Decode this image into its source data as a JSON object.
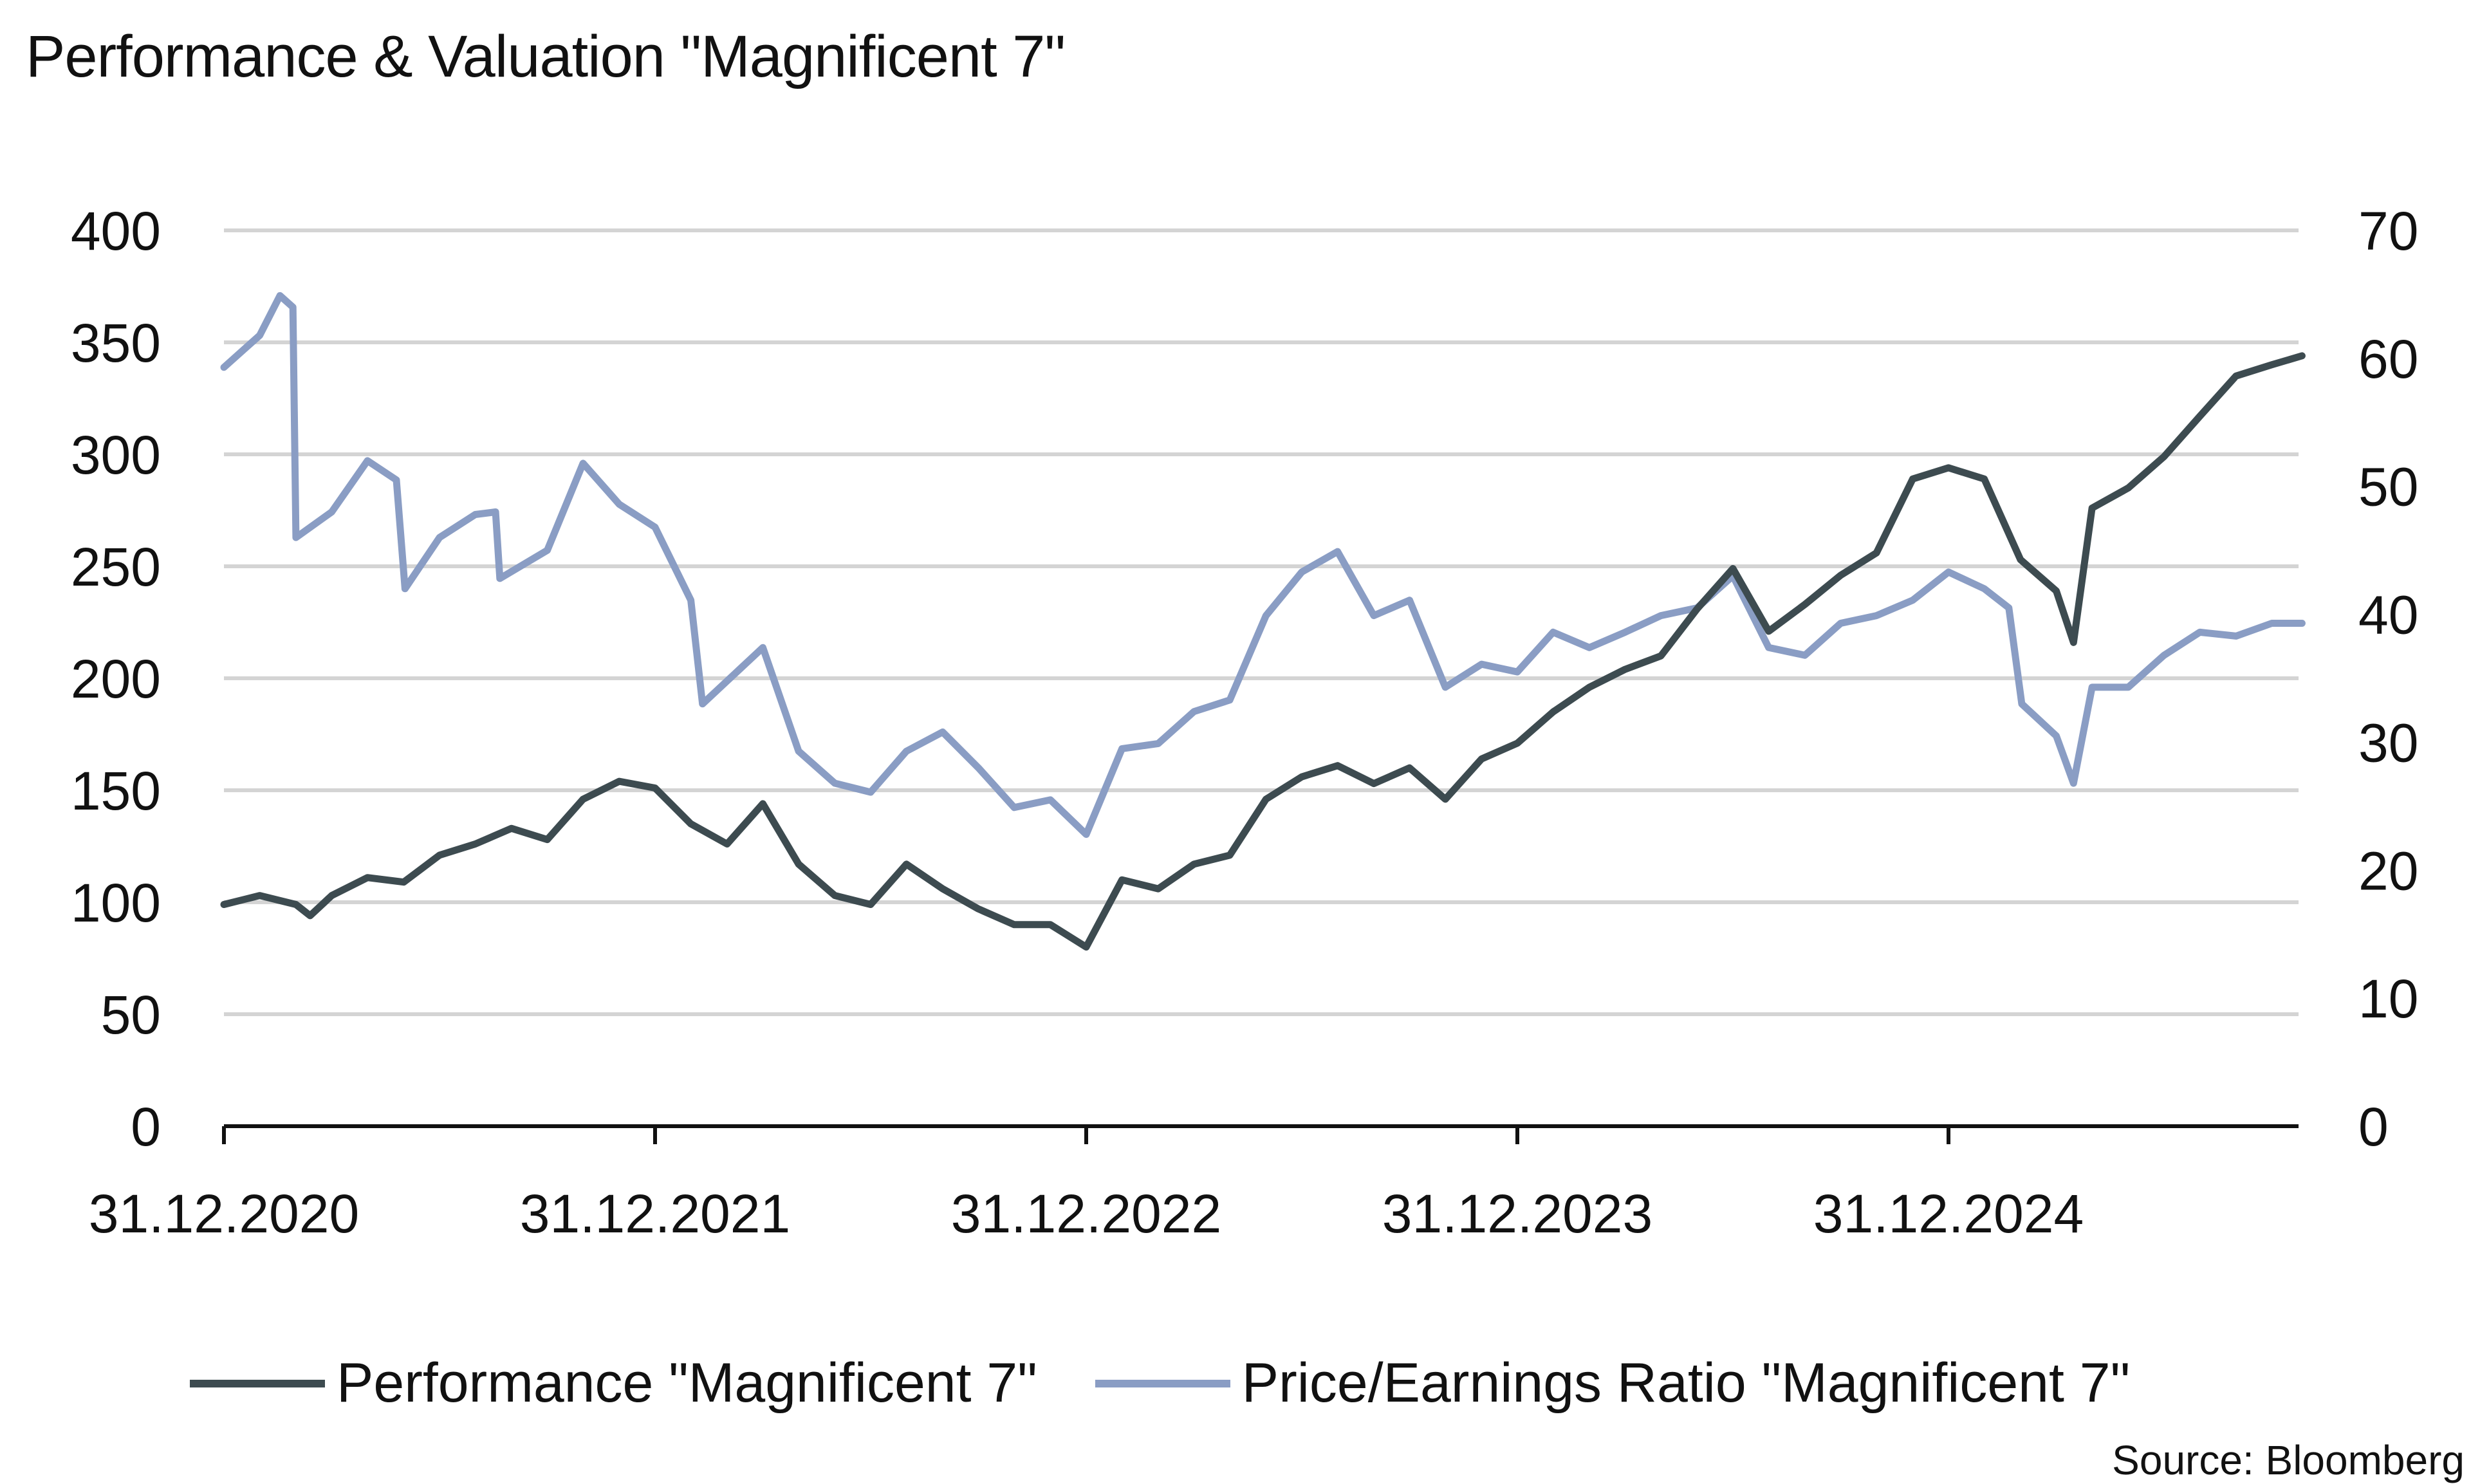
{
  "chart_data": {
    "type": "line",
    "title": "Performance & Valuation \"Magnificent 7\"",
    "xlabel": "",
    "ylabel_left": "",
    "ylabel_right": "",
    "x_unit": "years since 31.12.2020 (monthly samples)",
    "x_ticks": [
      0,
      1,
      2,
      3,
      4
    ],
    "x_tick_labels": [
      "31.12.2020",
      "31.12.2021",
      "31.12.2022",
      "31.12.2023",
      "31.12.2024"
    ],
    "xlim": [
      0,
      4.82
    ],
    "ylim_left": [
      0,
      400
    ],
    "y_ticks_left": [
      0,
      50,
      100,
      150,
      200,
      250,
      300,
      350,
      400
    ],
    "ylim_right": [
      0,
      70
    ],
    "y_ticks_right": [
      0,
      10,
      20,
      30,
      40,
      50,
      60,
      70
    ],
    "grid": true,
    "legend_position": "bottom",
    "source": "Source: Bloomberg",
    "series": [
      {
        "name": "Performance \"Magnificent 7\"",
        "axis": "left",
        "color": "#3d4b50",
        "x": [
          0,
          0.083,
          0.167,
          0.2,
          0.25,
          0.333,
          0.417,
          0.5,
          0.583,
          0.667,
          0.75,
          0.833,
          0.917,
          1.0,
          1.083,
          1.167,
          1.25,
          1.333,
          1.417,
          1.5,
          1.583,
          1.667,
          1.75,
          1.833,
          1.917,
          2.0,
          2.083,
          2.167,
          2.25,
          2.333,
          2.417,
          2.5,
          2.583,
          2.667,
          2.75,
          2.833,
          2.917,
          3.0,
          3.083,
          3.167,
          3.25,
          3.333,
          3.417,
          3.5,
          3.583,
          3.667,
          3.75,
          3.833,
          3.917,
          4.0,
          4.083,
          4.167,
          4.25,
          4.29,
          4.333,
          4.417,
          4.5,
          4.583,
          4.667,
          4.75,
          4.82
        ],
        "values": [
          99,
          103,
          99,
          94,
          103,
          111,
          109,
          121,
          126,
          133,
          128,
          146,
          154,
          151,
          135,
          126,
          144,
          117,
          103,
          99,
          117,
          106,
          97,
          90,
          90,
          80,
          110,
          106,
          117,
          121,
          146,
          156,
          161,
          153,
          160,
          146,
          164,
          171,
          185,
          196,
          204,
          210,
          231,
          249,
          221,
          233,
          246,
          256,
          289,
          294,
          289,
          253,
          239,
          216,
          276,
          285,
          299,
          317,
          335,
          340,
          344
        ]
      },
      {
        "name": "Price/Earnings Ratio \"Magnificent 7\"",
        "axis": "right",
        "color": "#8a9dc4",
        "x": [
          0,
          0.083,
          0.13,
          0.16,
          0.167,
          0.25,
          0.333,
          0.4,
          0.42,
          0.5,
          0.583,
          0.63,
          0.64,
          0.75,
          0.833,
          0.917,
          1.0,
          1.083,
          1.11,
          1.25,
          1.333,
          1.417,
          1.5,
          1.583,
          1.667,
          1.75,
          1.833,
          1.917,
          2.0,
          2.083,
          2.167,
          2.25,
          2.333,
          2.417,
          2.5,
          2.583,
          2.667,
          2.75,
          2.833,
          2.917,
          3.0,
          3.083,
          3.167,
          3.25,
          3.333,
          3.417,
          3.5,
          3.583,
          3.667,
          3.75,
          3.833,
          3.917,
          4.0,
          4.083,
          4.14,
          4.17,
          4.25,
          4.29,
          4.333,
          4.417,
          4.5,
          4.583,
          4.667,
          4.75,
          4.82
        ],
        "values": [
          59.3,
          61.8,
          64.9,
          64,
          46,
          48,
          52,
          50.5,
          42,
          46,
          47.8,
          48,
          42.8,
          45,
          51.8,
          48.6,
          46.8,
          41.1,
          33,
          37.4,
          29.3,
          26.8,
          26.1,
          29.3,
          30.8,
          28,
          24.9,
          25.5,
          22.8,
          29.5,
          29.9,
          32.4,
          33.3,
          39.9,
          43.3,
          44.9,
          39.9,
          41.1,
          34.3,
          36.1,
          35.5,
          38.6,
          37.4,
          38.6,
          39.9,
          40.5,
          43,
          37.4,
          36.8,
          39.3,
          39.9,
          41.1,
          43.3,
          42,
          40.5,
          33,
          30.5,
          26.8,
          34.3,
          34.3,
          36.8,
          38.6,
          38.3,
          39.3,
          39.3
        ]
      }
    ]
  }
}
